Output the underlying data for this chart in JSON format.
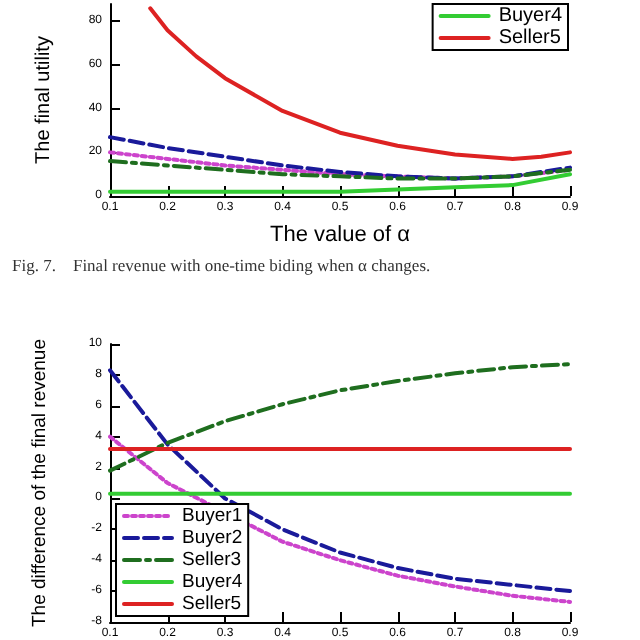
{
  "chart_data": [
    {
      "type": "line",
      "xlabel": "The value of α",
      "ylabel": "The final utility",
      "annotations": [
        "Fig. 7.    Final revenue with one-time biding when α changes."
      ],
      "x": [
        0.1,
        0.2,
        0.3,
        0.4,
        0.5,
        0.6,
        0.7,
        0.8,
        0.9
      ],
      "xlim": [
        0.1,
        0.9
      ],
      "xticks": [
        0.1,
        0.2,
        0.3,
        0.4,
        0.5,
        0.6,
        0.7,
        0.8,
        0.9
      ],
      "ylim": [
        0,
        88
      ],
      "yticks": [
        0,
        20,
        40,
        60,
        80
      ],
      "grid": false,
      "legend": "top right",
      "marker": "none",
      "series": [
        {
          "color": "#cc44cc",
          "line_style": "dotted",
          "values": [
            20,
            17,
            14,
            12,
            10,
            9,
            8,
            9,
            12
          ]
        },
        {
          "color": "#1a1a9a",
          "line_style": "dashed",
          "values": [
            27,
            22,
            18,
            14,
            11,
            9,
            8,
            9,
            13
          ]
        },
        {
          "color": "#1f6e1f",
          "line_style": "dashdot",
          "values": [
            16,
            14,
            12,
            10,
            9,
            8,
            8,
            9,
            12
          ]
        },
        {
          "name": "Buyer4",
          "color": "#33cc33",
          "line_style": "solid",
          "values": [
            2,
            2,
            2,
            2,
            2,
            3,
            4,
            5,
            10
          ]
        },
        {
          "name": "Seller5",
          "color": "#dd2222",
          "line_style": "solid",
          "x": [
            0.17,
            0.2,
            0.25,
            0.3,
            0.4,
            0.5,
            0.6,
            0.7,
            0.8,
            0.85,
            0.9
          ],
          "values": [
            86,
            76,
            64,
            54,
            39,
            29,
            23,
            19,
            17,
            18,
            20
          ]
        }
      ]
    },
    {
      "type": "line",
      "ylabel": "The difference of the final revenue",
      "x": [
        0.1,
        0.2,
        0.3,
        0.4,
        0.5,
        0.6,
        0.7,
        0.8,
        0.9
      ],
      "xlim": [
        0.1,
        0.9
      ],
      "xticks": [
        0.1,
        0.2,
        0.3,
        0.4,
        0.5,
        0.6,
        0.7,
        0.8,
        0.9
      ],
      "ylim": [
        -8,
        10
      ],
      "yticks": [
        -8,
        -6,
        -4,
        -2,
        0,
        2,
        4,
        6,
        8,
        10
      ],
      "grid": false,
      "legend": "bottom left",
      "marker": "none",
      "series": [
        {
          "name": "Buyer1",
          "color": "#cc44cc",
          "line_style": "dotted",
          "values": [
            4,
            1,
            null,
            -2.8,
            -4,
            -5,
            -5.7,
            -6.3,
            -6.7
          ]
        },
        {
          "name": "Buyer2",
          "color": "#1a1a9a",
          "line_style": "dashed",
          "values": [
            8.3,
            3.5,
            0,
            -2,
            -3.5,
            -4.5,
            -5.2,
            -5.6,
            -6
          ]
        },
        {
          "name": "Seller3",
          "color": "#1f6e1f",
          "line_style": "dashdot",
          "values": [
            1.8,
            3.6,
            5,
            6.1,
            7,
            7.6,
            8.1,
            8.5,
            8.7
          ]
        },
        {
          "name": "Buyer4",
          "color": "#33cc33",
          "line_style": "solid",
          "values": [
            0.3,
            0.3,
            0.3,
            0.3,
            0.3,
            0.3,
            0.3,
            0.3,
            0.3
          ]
        },
        {
          "name": "Seller5",
          "color": "#dd2222",
          "line_style": "solid",
          "values": [
            3.2,
            3.2,
            3.2,
            3.2,
            3.2,
            3.2,
            3.2,
            3.2,
            3.2
          ]
        }
      ]
    }
  ]
}
